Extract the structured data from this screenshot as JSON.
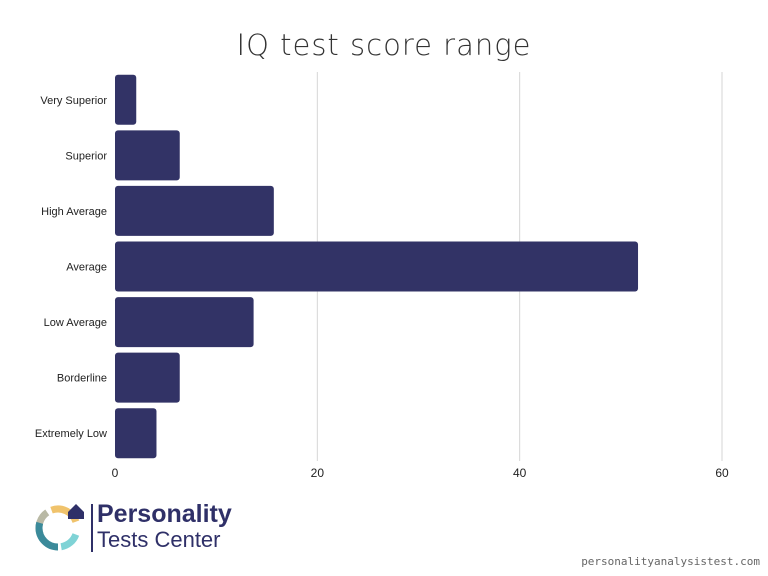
{
  "chart_data": {
    "type": "bar",
    "orientation": "horizontal",
    "title": "IQ test score range",
    "categories": [
      "Very Superior",
      "Superior",
      "High Average",
      "Average",
      "Low Average",
      "Borderline",
      "Extremely Low"
    ],
    "values": [
      2.1,
      6.4,
      15.7,
      51.7,
      13.7,
      6.4,
      4.1
    ],
    "xlim": [
      0,
      60
    ],
    "xticks": [
      0,
      20,
      40,
      60
    ],
    "grid": true,
    "bar_color": "#323366",
    "xlabel": "",
    "ylabel": ""
  },
  "branding": {
    "line1": "Personality",
    "line2": "Tests Center",
    "url": "personalityanalysistest.com"
  }
}
